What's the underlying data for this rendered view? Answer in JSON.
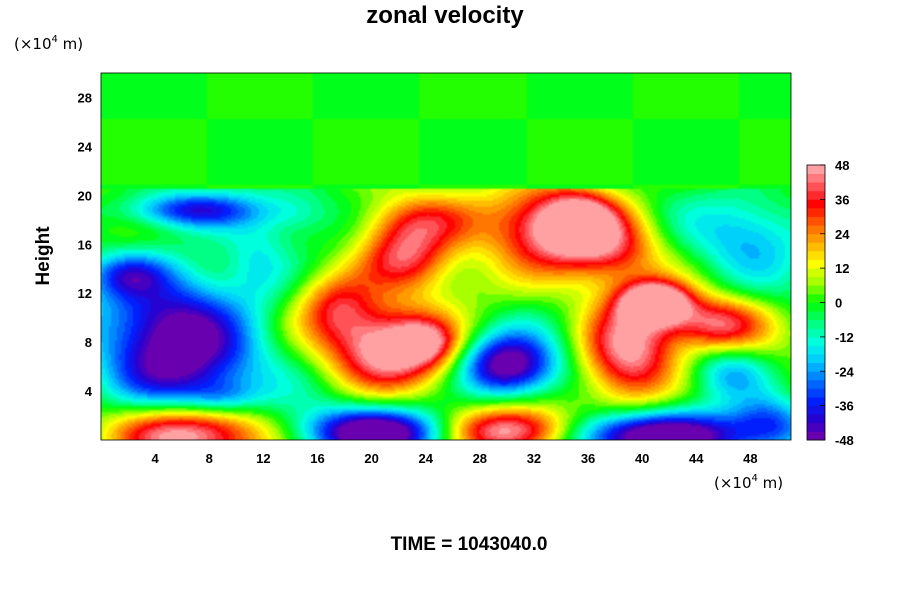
{
  "chart_data": {
    "type": "heatmap",
    "title": "zonal velocity",
    "xlabel": "",
    "ylabel": "Height",
    "x_unit": {
      "prefix": "(×10",
      "exponent": "4",
      "suffix": " m)"
    },
    "y_unit": {
      "prefix": "(×10",
      "exponent": "4",
      "suffix": " m)"
    },
    "xlim": [
      0,
      51
    ],
    "ylim": [
      0,
      30
    ],
    "x_ticks": [
      4,
      8,
      12,
      16,
      20,
      24,
      28,
      32,
      36,
      40,
      44,
      48
    ],
    "y_ticks": [
      4,
      8,
      12,
      16,
      20,
      24,
      28
    ],
    "grid": false,
    "colorbar": {
      "range": [
        -48,
        48
      ],
      "levels": 32,
      "tick_labels": [
        "48",
        "36",
        "24",
        "12",
        "0",
        "-12",
        "-24",
        "-36",
        "-48"
      ],
      "tick_values": [
        48,
        36,
        24,
        12,
        0,
        -12,
        -24,
        -36,
        -48
      ],
      "colors": [
        "#7a00a8",
        "#2a00cc",
        "#0020ff",
        "#0070ff",
        "#00c8ff",
        "#00ffe0",
        "#00ff7a",
        "#00ff00",
        "#a0ff00",
        "#ffff00",
        "#ffb000",
        "#ff6000",
        "#ff0000",
        "#ff5a60",
        "#ffb4b4"
      ]
    },
    "background_value": 0,
    "layer_top_height": 20.5,
    "features": [
      {
        "x": 5.5,
        "y": 7.5,
        "sx": 4.0,
        "sy": 4.5,
        "value": -52
      },
      {
        "x": 6.5,
        "y": 18.8,
        "sx": 3.5,
        "sy": 1.0,
        "value": -35
      },
      {
        "x": 2.0,
        "y": 13.5,
        "sx": 2.0,
        "sy": 1.2,
        "value": -22
      },
      {
        "x": 6.5,
        "y": 0.5,
        "sx": 4.0,
        "sy": 1.8,
        "value": 60
      },
      {
        "x": 21.5,
        "y": 7.5,
        "sx": 3.2,
        "sy": 2.3,
        "value": 52
      },
      {
        "x": 24.0,
        "y": 8.0,
        "sx": 1.5,
        "sy": 1.2,
        "value": 20
      },
      {
        "x": 17.5,
        "y": 11.0,
        "sx": 2.0,
        "sy": 2.0,
        "value": 28
      },
      {
        "x": 22.5,
        "y": 15.0,
        "sx": 2.5,
        "sy": 2.0,
        "value": 42
      },
      {
        "x": 23.5,
        "y": 18.0,
        "sx": 3.0,
        "sy": 1.5,
        "value": 22
      },
      {
        "x": 20.5,
        "y": 0.6,
        "sx": 4.0,
        "sy": 1.4,
        "value": -55
      },
      {
        "x": 30.5,
        "y": 0.6,
        "sx": 3.5,
        "sy": 1.4,
        "value": 62
      },
      {
        "x": 30.0,
        "y": 6.0,
        "sx": 2.5,
        "sy": 1.8,
        "value": -55
      },
      {
        "x": 34.0,
        "y": 17.5,
        "sx": 3.5,
        "sy": 2.5,
        "value": 52
      },
      {
        "x": 35.5,
        "y": 18.0,
        "sx": 1.6,
        "sy": 1.4,
        "value": 22
      },
      {
        "x": 38.0,
        "y": 15.5,
        "sx": 2.5,
        "sy": 2.0,
        "value": 20
      },
      {
        "x": 39.0,
        "y": 7.0,
        "sx": 2.5,
        "sy": 3.0,
        "value": 50
      },
      {
        "x": 41.0,
        "y": 11.2,
        "sx": 1.8,
        "sy": 1.2,
        "value": 60
      },
      {
        "x": 45.5,
        "y": 9.5,
        "sx": 2.5,
        "sy": 1.5,
        "value": 38
      },
      {
        "x": 40.0,
        "y": 0.3,
        "sx": 5.5,
        "sy": 1.4,
        "value": -60
      },
      {
        "x": 46.5,
        "y": 5.5,
        "sx": 2.0,
        "sy": 1.5,
        "value": -22
      },
      {
        "x": 48.0,
        "y": 17.0,
        "sx": 3.0,
        "sy": 2.5,
        "value": -20
      },
      {
        "x": 11.5,
        "y": 14.5,
        "sx": 1.8,
        "sy": 2.5,
        "value": -14
      },
      {
        "x": 14.5,
        "y": 18.5,
        "sx": 1.8,
        "sy": 1.2,
        "value": -10
      },
      {
        "x": 27.0,
        "y": 12.0,
        "sx": 3.0,
        "sy": 2.0,
        "value": 8
      },
      {
        "x": 49.5,
        "y": 1.5,
        "sx": 2.0,
        "sy": 1.5,
        "value": -25
      },
      {
        "x": 9.0,
        "y": 3.5,
        "sx": 2.0,
        "sy": 1.0,
        "value": -15
      }
    ]
  },
  "footer": {
    "time_label": "TIME = 1043040.0"
  }
}
